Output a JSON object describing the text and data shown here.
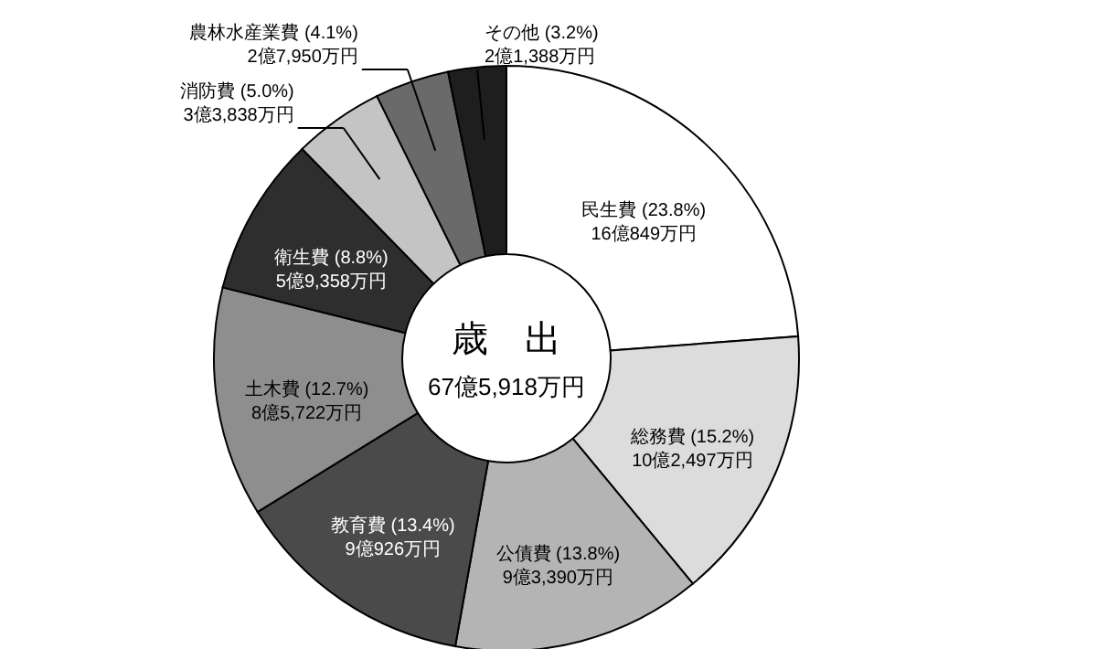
{
  "chart_data": {
    "type": "donut",
    "title": "歳　出",
    "subtitle": "67億5,918万円",
    "categories": [
      "民生費",
      "総務費",
      "公債費",
      "教育費",
      "土木費",
      "衛生費",
      "消防費",
      "農林水産業費",
      "その他"
    ],
    "values": [
      23.8,
      15.2,
      13.8,
      13.4,
      12.7,
      8.8,
      5.0,
      4.1,
      3.2
    ],
    "colors": [
      "#ffffff",
      "#dcdcdc",
      "#b4b4b4",
      "#4a4a4a",
      "#8e8e8e",
      "#2e2e2e",
      "#c4c4c4",
      "#6a6a6a",
      "#1e1e1e"
    ],
    "value_labels": [
      "(23.8%)\n16億849万円",
      "(15.2%)\n10億2,497万円",
      "(13.8%)\n9億3,390万円",
      "(13.4%)\n9億926万円",
      "(12.7%)\n8億5,722万円",
      "(8.8%)\n5億9,358万円",
      "(5.0%)\n3億3,838万円",
      "(4.1%)\n2億7,950万円",
      "(3.2%)\n2億1,388万円"
    ]
  }
}
